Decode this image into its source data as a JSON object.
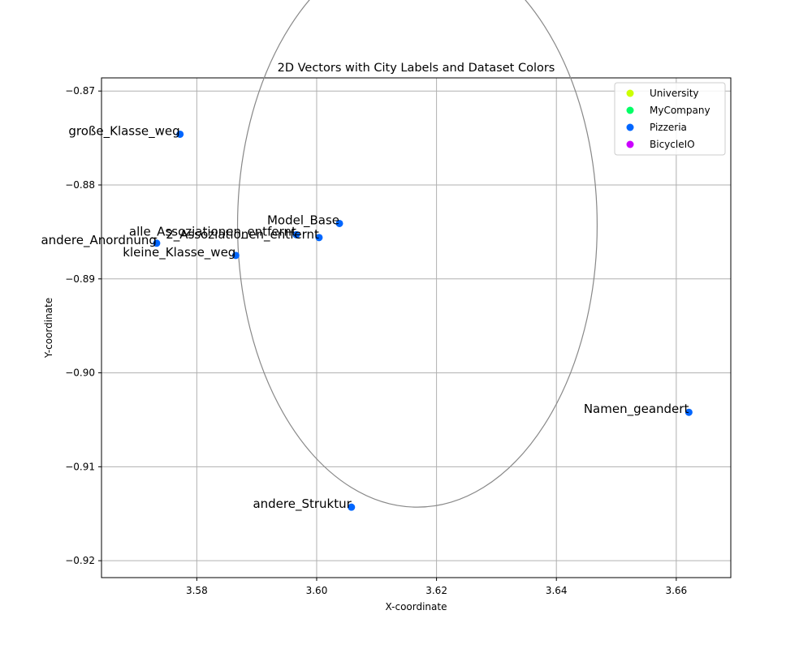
{
  "chart_data": {
    "type": "scatter",
    "title": "2D Vectors with City Labels and Dataset Colors",
    "xlabel": "X-coordinate",
    "ylabel": "Y-coordinate",
    "xlim": [
      3.5641,
      3.6691
    ],
    "ylim": [
      -0.9218,
      -0.8686
    ],
    "xticks": [
      3.58,
      3.6,
      3.62,
      3.64,
      3.66
    ],
    "xtick_labels": [
      "3.58",
      "3.60",
      "3.62",
      "3.64",
      "3.66"
    ],
    "yticks": [
      -0.87,
      -0.88,
      -0.89,
      -0.9,
      -0.91,
      -0.92
    ],
    "ytick_labels": [
      "−0.87",
      "−0.88",
      "−0.89",
      "−0.90",
      "−0.91",
      "−0.92"
    ],
    "grid": true,
    "legend_position": "top-right",
    "legend": [
      {
        "name": "University",
        "color": "#ccff00"
      },
      {
        "name": "MyCompany",
        "color": "#00ff66"
      },
      {
        "name": "Pizzeria",
        "color": "#0066ff"
      },
      {
        "name": "BicycleIO",
        "color": "#cc00ff"
      }
    ],
    "series": [
      {
        "name": "Pizzeria",
        "color": "#0066ff",
        "points": [
          {
            "label": "große_Klasse_weg",
            "x": 3.5772,
            "y": -0.8746
          },
          {
            "label": "Model_Base",
            "x": 3.6038,
            "y": -0.8841
          },
          {
            "label": "alle_Assoziationen_entfernt",
            "x": 3.5966,
            "y": -0.8853
          },
          {
            "label": "2_Assoziationen_entfernt",
            "x": 3.6004,
            "y": -0.8856
          },
          {
            "label": "andere_Anordnung",
            "x": 3.5733,
            "y": -0.8862
          },
          {
            "label": "kleine_Klasse_weg",
            "x": 3.5865,
            "y": -0.8875
          },
          {
            "label": "Namen_geandert",
            "x": 3.6621,
            "y": -0.9042
          },
          {
            "label": "andere_Struktur",
            "x": 3.6058,
            "y": -0.9143
          }
        ]
      }
    ],
    "circle": {
      "cx": 3.6168,
      "cy": -0.8843,
      "r": 0.03,
      "color": "#888888"
    }
  }
}
